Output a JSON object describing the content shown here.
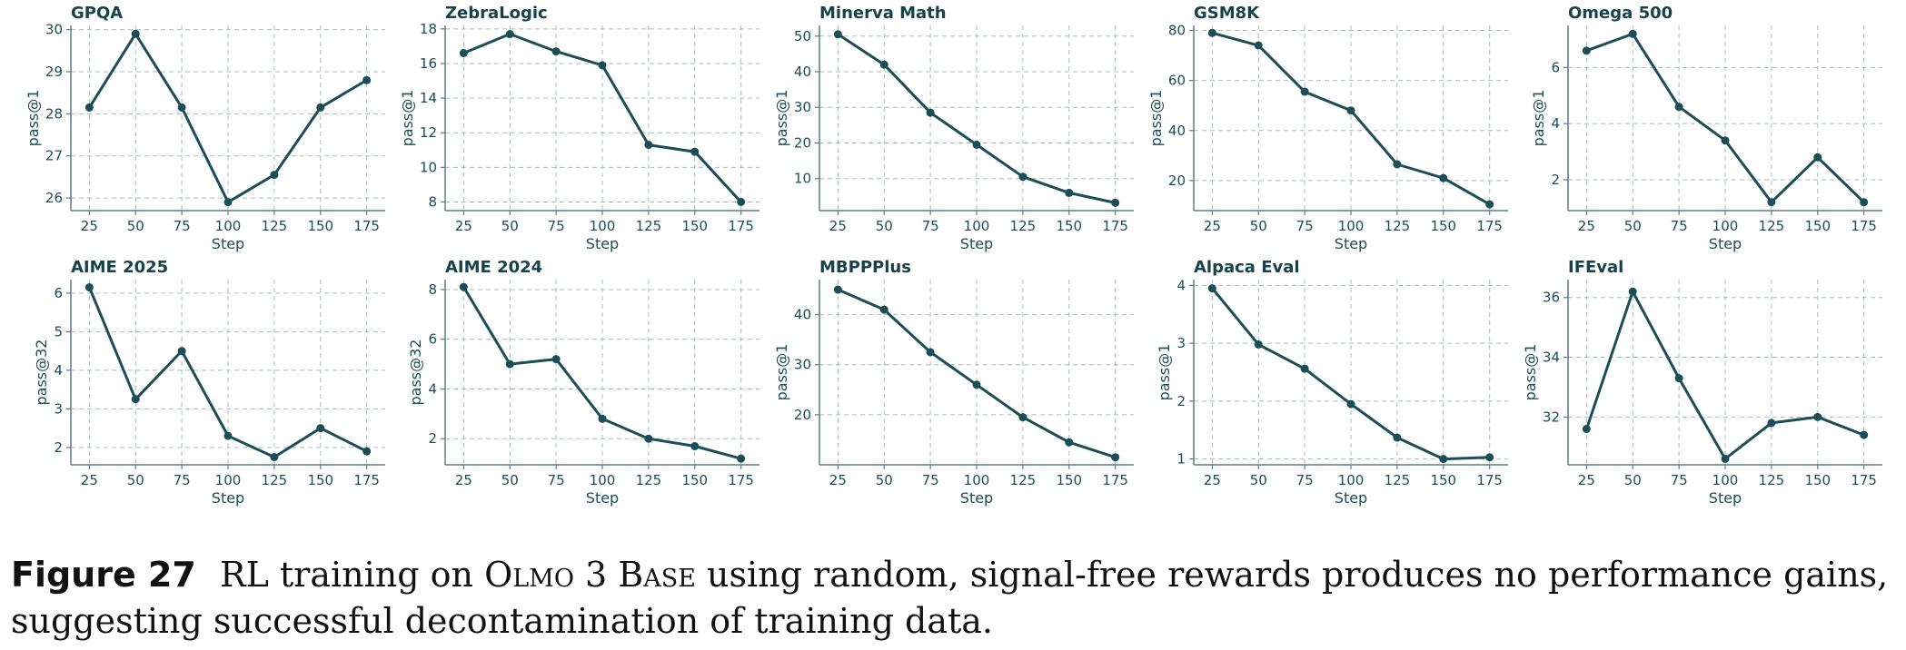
{
  "caption": {
    "figure_label": "Figure 27",
    "text_before": "RL training on",
    "model_name": "Olmo 3 Base",
    "text_after": "using random, signal-free rewards produces no performance gains, suggesting successful decontamination of training data."
  },
  "colors": {
    "line": "#1b4e57",
    "grid": "#a9bcc0",
    "axis_text": "#1b4e57",
    "axis_line": "#5e7d83"
  },
  "chart_data": [
    {
      "type": "line",
      "title": "GPQA",
      "xlabel": "Step",
      "ylabel": "pass@1",
      "grid": true,
      "x": [
        25,
        50,
        75,
        100,
        125,
        150,
        175
      ],
      "xticks": [
        25,
        50,
        75,
        100,
        125,
        150,
        175
      ],
      "values": [
        28.15,
        29.9,
        28.15,
        25.9,
        26.55,
        28.15,
        28.8
      ],
      "ylim": [
        25.7,
        30.1
      ],
      "yticks": [
        26,
        27,
        28,
        29,
        30
      ]
    },
    {
      "type": "line",
      "title": "ZebraLogic",
      "xlabel": "Step",
      "ylabel": "pass@1",
      "grid": true,
      "x": [
        25,
        50,
        75,
        100,
        125,
        150,
        175
      ],
      "xticks": [
        25,
        50,
        75,
        100,
        125,
        150,
        175
      ],
      "values": [
        16.6,
        17.7,
        16.7,
        15.9,
        11.3,
        10.9,
        8.0
      ],
      "ylim": [
        7.5,
        18.2
      ],
      "yticks": [
        8,
        10,
        12,
        14,
        16,
        18
      ]
    },
    {
      "type": "line",
      "title": "Minerva Math",
      "xlabel": "Step",
      "ylabel": "pass@1",
      "grid": true,
      "x": [
        25,
        50,
        75,
        100,
        125,
        150,
        175
      ],
      "xticks": [
        25,
        50,
        75,
        100,
        125,
        150,
        175
      ],
      "values": [
        50.5,
        42.0,
        28.5,
        19.5,
        10.5,
        6.0,
        3.2
      ],
      "ylim": [
        1,
        53
      ],
      "yticks": [
        10,
        20,
        30,
        40,
        50
      ]
    },
    {
      "type": "line",
      "title": "GSM8K",
      "xlabel": "Step",
      "ylabel": "pass@1",
      "grid": true,
      "x": [
        25,
        50,
        75,
        100,
        125,
        150,
        175
      ],
      "xticks": [
        25,
        50,
        75,
        100,
        125,
        150,
        175
      ],
      "values": [
        79.0,
        74.0,
        55.5,
        48.0,
        26.5,
        21.0,
        10.5
      ],
      "ylim": [
        8,
        82
      ],
      "yticks": [
        20,
        40,
        60,
        80
      ]
    },
    {
      "type": "line",
      "title": "Omega 500",
      "xlabel": "Step",
      "ylabel": "pass@1",
      "grid": true,
      "x": [
        25,
        50,
        75,
        100,
        125,
        150,
        175
      ],
      "xticks": [
        25,
        50,
        75,
        100,
        125,
        150,
        175
      ],
      "values": [
        6.6,
        7.2,
        4.6,
        3.4,
        1.2,
        2.8,
        1.2
      ],
      "ylim": [
        0.9,
        7.5
      ],
      "yticks": [
        2,
        4,
        6
      ]
    },
    {
      "type": "line",
      "title": "AIME 2025",
      "xlabel": "Step",
      "ylabel": "pass@32",
      "grid": true,
      "x": [
        25,
        50,
        75,
        100,
        125,
        150,
        175
      ],
      "xticks": [
        25,
        50,
        75,
        100,
        125,
        150,
        175
      ],
      "values": [
        6.15,
        3.25,
        4.5,
        2.3,
        1.75,
        2.5,
        1.9
      ],
      "ylim": [
        1.55,
        6.35
      ],
      "yticks": [
        2,
        3,
        4,
        5,
        6
      ]
    },
    {
      "type": "line",
      "title": "AIME 2024",
      "xlabel": "Step",
      "ylabel": "pass@32",
      "grid": true,
      "x": [
        25,
        50,
        75,
        100,
        125,
        150,
        175
      ],
      "xticks": [
        25,
        50,
        75,
        100,
        125,
        150,
        175
      ],
      "values": [
        8.1,
        5.0,
        5.2,
        2.8,
        2.0,
        1.7,
        1.2
      ],
      "ylim": [
        0.95,
        8.4
      ],
      "yticks": [
        2,
        4,
        6,
        8
      ]
    },
    {
      "type": "line",
      "title": "MBPPPlus",
      "xlabel": "Step",
      "ylabel": "pass@1",
      "grid": true,
      "x": [
        25,
        50,
        75,
        100,
        125,
        150,
        175
      ],
      "xticks": [
        25,
        50,
        75,
        100,
        125,
        150,
        175
      ],
      "values": [
        45.0,
        41.0,
        32.5,
        26.0,
        19.5,
        14.5,
        11.5
      ],
      "ylim": [
        10,
        47
      ],
      "yticks": [
        20,
        30,
        40
      ]
    },
    {
      "type": "line",
      "title": "Alpaca Eval",
      "xlabel": "Step",
      "ylabel": "pass@1",
      "grid": true,
      "x": [
        25,
        50,
        75,
        100,
        125,
        150,
        175
      ],
      "xticks": [
        25,
        50,
        75,
        100,
        125,
        150,
        175
      ],
      "values": [
        3.95,
        2.98,
        2.56,
        1.95,
        1.37,
        1.0,
        1.03
      ],
      "ylim": [
        0.9,
        4.1
      ],
      "yticks": [
        1,
        2,
        3,
        4
      ]
    },
    {
      "type": "line",
      "title": "IFEval",
      "xlabel": "Step",
      "ylabel": "pass@1",
      "grid": true,
      "x": [
        25,
        50,
        75,
        100,
        125,
        150,
        175
      ],
      "xticks": [
        25,
        50,
        75,
        100,
        125,
        150,
        175
      ],
      "values": [
        31.6,
        36.2,
        33.3,
        30.6,
        31.8,
        32.0,
        31.4
      ],
      "ylim": [
        30.4,
        36.6
      ],
      "yticks": [
        32,
        34,
        36
      ]
    }
  ]
}
